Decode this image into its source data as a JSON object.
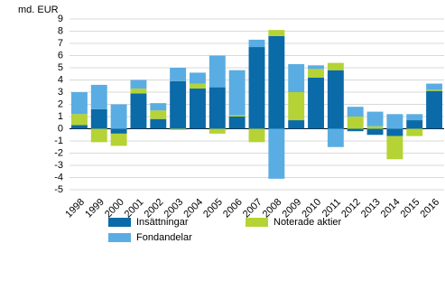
{
  "chart_data": {
    "type": "stacked-bar",
    "y_label": "md. EUR",
    "categories": [
      "1998",
      "1999",
      "2000",
      "2001",
      "2002",
      "2003",
      "2004",
      "2005",
      "2006",
      "2007",
      "2008",
      "2009",
      "2010",
      "2011",
      "2012",
      "2013",
      "2014",
      "2015",
      "2016"
    ],
    "series": [
      {
        "name": "Insättningar",
        "color": "#0b6aa8",
        "values": [
          0.3,
          1.6,
          -0.4,
          2.9,
          0.8,
          3.9,
          3.3,
          3.4,
          1.0,
          6.7,
          7.6,
          0.7,
          4.2,
          4.8,
          -0.2,
          -0.5,
          -0.6,
          0.7,
          3.1
        ]
      },
      {
        "name": "Noterade aktier",
        "color": "#b5d334",
        "values": [
          0.9,
          -1.1,
          -1.0,
          0.4,
          0.7,
          -0.1,
          0.4,
          -0.4,
          0.1,
          -1.1,
          0.5,
          2.3,
          0.7,
          0.6,
          1.0,
          0.2,
          -1.9,
          -0.6,
          0.1
        ]
      },
      {
        "name": "Fondandelar",
        "color": "#5aade2",
        "values": [
          1.8,
          2.0,
          2.0,
          0.7,
          0.6,
          1.1,
          0.9,
          2.6,
          3.7,
          0.6,
          -4.1,
          2.3,
          0.3,
          -1.5,
          0.8,
          1.2,
          1.2,
          0.5,
          0.5
        ]
      }
    ],
    "ylim": [
      -5,
      9
    ],
    "yticks": [
      -5,
      -4,
      -3,
      -2,
      -1,
      0,
      1,
      2,
      3,
      4,
      5,
      6,
      7,
      8,
      9
    ],
    "grid": true
  }
}
